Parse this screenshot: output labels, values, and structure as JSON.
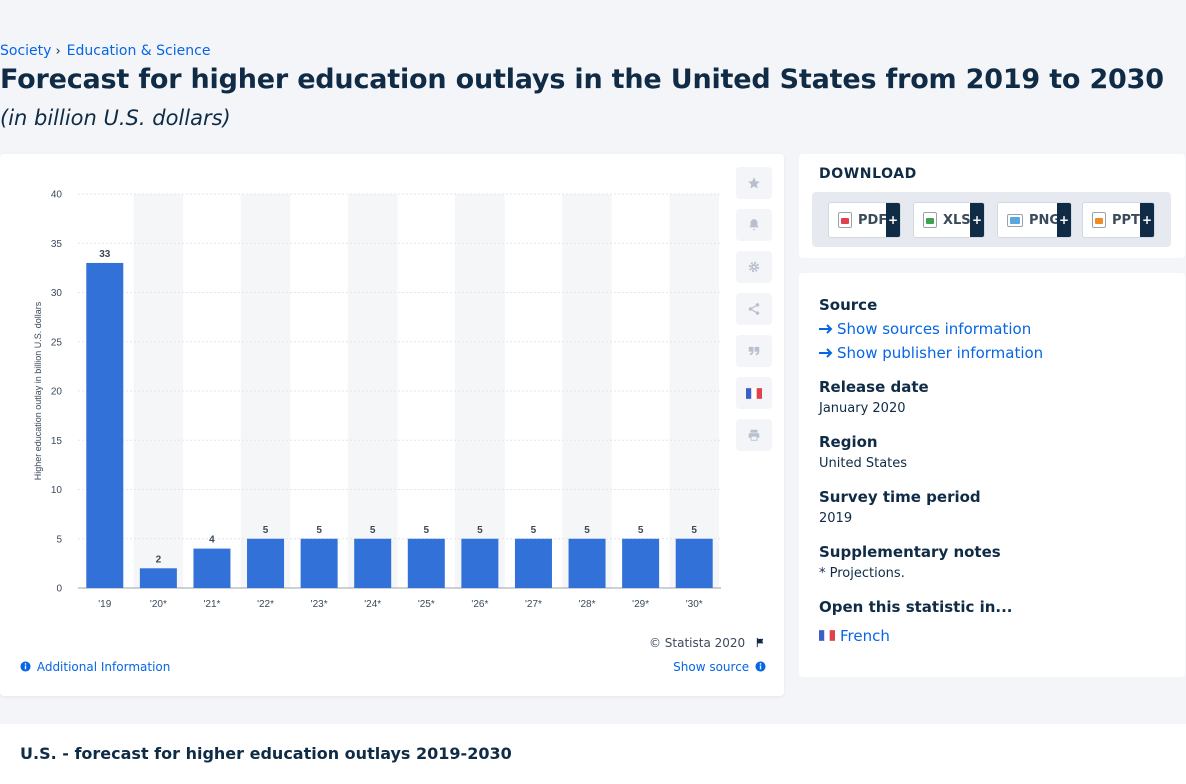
{
  "breadcrumb": {
    "item1": "Society",
    "sep": "›",
    "item2": "Education & Science"
  },
  "title": "Forecast for higher education outlays in the United States from 2019 to 2030",
  "subtitle": "(in billion U.S. dollars)",
  "chart_data": {
    "type": "bar",
    "categories": [
      "'19",
      "'20*",
      "'21*",
      "'22*",
      "'23*",
      "'24*",
      "'25*",
      "'26*",
      "'27*",
      "'28*",
      "'29*",
      "'30*"
    ],
    "values": [
      33,
      2,
      4,
      5,
      5,
      5,
      5,
      5,
      5,
      5,
      5,
      5
    ],
    "ylabel": "Higher education outlay in billion U.S. dollars",
    "ylim": [
      0,
      40
    ],
    "yticks": [
      0,
      5,
      10,
      15,
      20,
      25,
      30,
      35,
      40
    ],
    "bar_color": "#3271d8",
    "grid": true,
    "data_labels": true
  },
  "toolbar": {
    "favorite_icon": "star-icon",
    "alert_icon": "bell-icon",
    "settings_icon": "gear-icon",
    "share_icon": "share-icon",
    "cite_icon": "quote-icon",
    "lang_icon": "french-flag-icon",
    "print_icon": "print-icon"
  },
  "footer": {
    "copyright": "© Statista 2020",
    "additional_info": "Additional Information",
    "show_source": "Show source"
  },
  "download": {
    "title": "DOWNLOAD",
    "buttons": [
      {
        "label": "PDF",
        "plus": "+"
      },
      {
        "label": "XLS",
        "plus": "+"
      },
      {
        "label": "PNG",
        "plus": "+"
      },
      {
        "label": "PPT",
        "plus": "+"
      }
    ]
  },
  "info": {
    "source_heading": "Source",
    "show_sources": "Show sources information",
    "show_publisher": "Show publisher information",
    "release_heading": "Release date",
    "release_value": "January 2020",
    "region_heading": "Region",
    "region_value": "United States",
    "survey_heading": "Survey time period",
    "survey_value": "2019",
    "notes_heading": "Supplementary notes",
    "notes_value": "* Projections.",
    "open_heading": "Open this statistic in...",
    "open_french": "French"
  },
  "bottom": {
    "title": "U.S. - forecast for higher education outlays 2019-2030"
  }
}
